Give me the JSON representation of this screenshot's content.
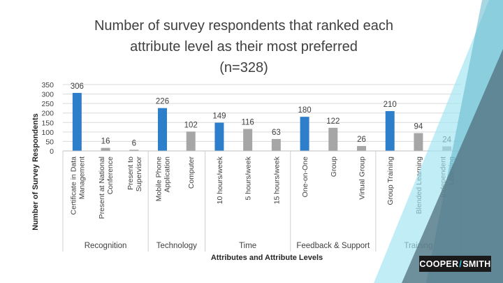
{
  "title_lines": [
    "Number of survey respondents that ranked each",
    "attribute level as their most preferred",
    "(n=328)"
  ],
  "logo": {
    "left": "COOPER",
    "slash": "/",
    "right": "SMITH"
  },
  "colors": {
    "highlight": "#2e7fcb",
    "normal": "#a6a6a6",
    "grid": "#d9d9d9",
    "deco_dark": "#4d6b79",
    "deco_light": "#9fe3f2"
  },
  "chart_data": {
    "type": "bar",
    "title": "Number of survey respondents that ranked each attribute level as their most preferred (n=328)",
    "xlabel": "Attributes  and Attribute Levels",
    "ylabel": "Number of Survey Respondents",
    "ylim": [
      0,
      350
    ],
    "yticks": [
      0,
      50,
      100,
      150,
      200,
      250,
      300,
      350
    ],
    "grid": true,
    "groups": [
      {
        "name": "Recognition",
        "bars": [
          {
            "label": [
              "Certificate in Data",
              "Management"
            ],
            "value": 306,
            "highlight": true
          },
          {
            "label": [
              "Present at National",
              "Conference"
            ],
            "value": 16,
            "highlight": false
          },
          {
            "label": [
              "Present to",
              "Supervisor"
            ],
            "value": 6,
            "highlight": false
          }
        ]
      },
      {
        "name": "Technology",
        "bars": [
          {
            "label": [
              "Mobile Phone",
              "Application"
            ],
            "value": 226,
            "highlight": true
          },
          {
            "label": [
              "Computer"
            ],
            "value": 102,
            "highlight": false
          }
        ]
      },
      {
        "name": "Time",
        "bars": [
          {
            "label": [
              "10 hours/week"
            ],
            "value": 149,
            "highlight": true
          },
          {
            "label": [
              "5 hours/week"
            ],
            "value": 116,
            "highlight": false
          },
          {
            "label": [
              "15 hours/week"
            ],
            "value": 63,
            "highlight": false
          }
        ]
      },
      {
        "name": "Feedback & Support",
        "bars": [
          {
            "label": [
              "One-on-One"
            ],
            "value": 180,
            "highlight": true
          },
          {
            "label": [
              "Group"
            ],
            "value": 122,
            "highlight": false
          },
          {
            "label": [
              "Virtual Group"
            ],
            "value": 26,
            "highlight": false
          }
        ]
      },
      {
        "name": "Training",
        "bars": [
          {
            "label": [
              "Group Training"
            ],
            "value": 210,
            "highlight": true
          },
          {
            "label": [
              "Blended Learning"
            ],
            "value": 94,
            "highlight": false
          },
          {
            "label": [
              "Independent",
              "Learning"
            ],
            "value": 24,
            "highlight": false
          }
        ]
      }
    ]
  }
}
